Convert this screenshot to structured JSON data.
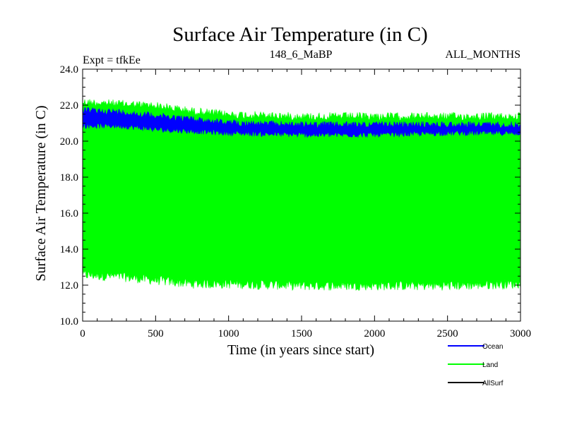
{
  "chart_data": {
    "type": "line",
    "title": "Surface Air Temperature (in C)",
    "subtitle_left": "Expt = tfkEe",
    "subtitle_center": "148_6_MaBP",
    "subtitle_right": "ALL_MONTHS",
    "xlabel": "Time (in years since start)",
    "ylabel": "Surface Air Temperature (in C)",
    "xlim": [
      0,
      3000
    ],
    "ylim": [
      10.0,
      24.0
    ],
    "x_ticks": [
      "0",
      "500",
      "1000",
      "1500",
      "2000",
      "2500",
      "3000"
    ],
    "y_ticks": [
      "10.0",
      "12.0",
      "14.0",
      "16.0",
      "18.0",
      "20.0",
      "22.0",
      "24.0"
    ],
    "legend_position": "bottom-right, below plot",
    "series": [
      {
        "name": "Land",
        "color": "#00ff00",
        "x": [
          0,
          250,
          500,
          750,
          1000,
          1500,
          2000,
          2500,
          3000
        ],
        "upper": [
          22.4,
          22.3,
          22.2,
          21.9,
          21.7,
          21.6,
          21.6,
          21.6,
          21.6
        ],
        "lower": [
          12.3,
          12.2,
          12.0,
          11.8,
          11.8,
          11.7,
          11.7,
          11.7,
          11.8
        ]
      },
      {
        "name": "Ocean",
        "color": "#0000ff",
        "x": [
          0,
          250,
          500,
          750,
          1000,
          1500,
          2000,
          2500,
          3000
        ],
        "upper": [
          21.9,
          21.8,
          21.6,
          21.4,
          21.2,
          21.1,
          21.1,
          21.1,
          21.1
        ],
        "lower": [
          20.7,
          20.7,
          20.5,
          20.4,
          20.3,
          20.2,
          20.2,
          20.3,
          20.3
        ]
      },
      {
        "name": "AllSurf",
        "color": "#000000",
        "x": [],
        "upper": [],
        "lower": []
      }
    ]
  }
}
